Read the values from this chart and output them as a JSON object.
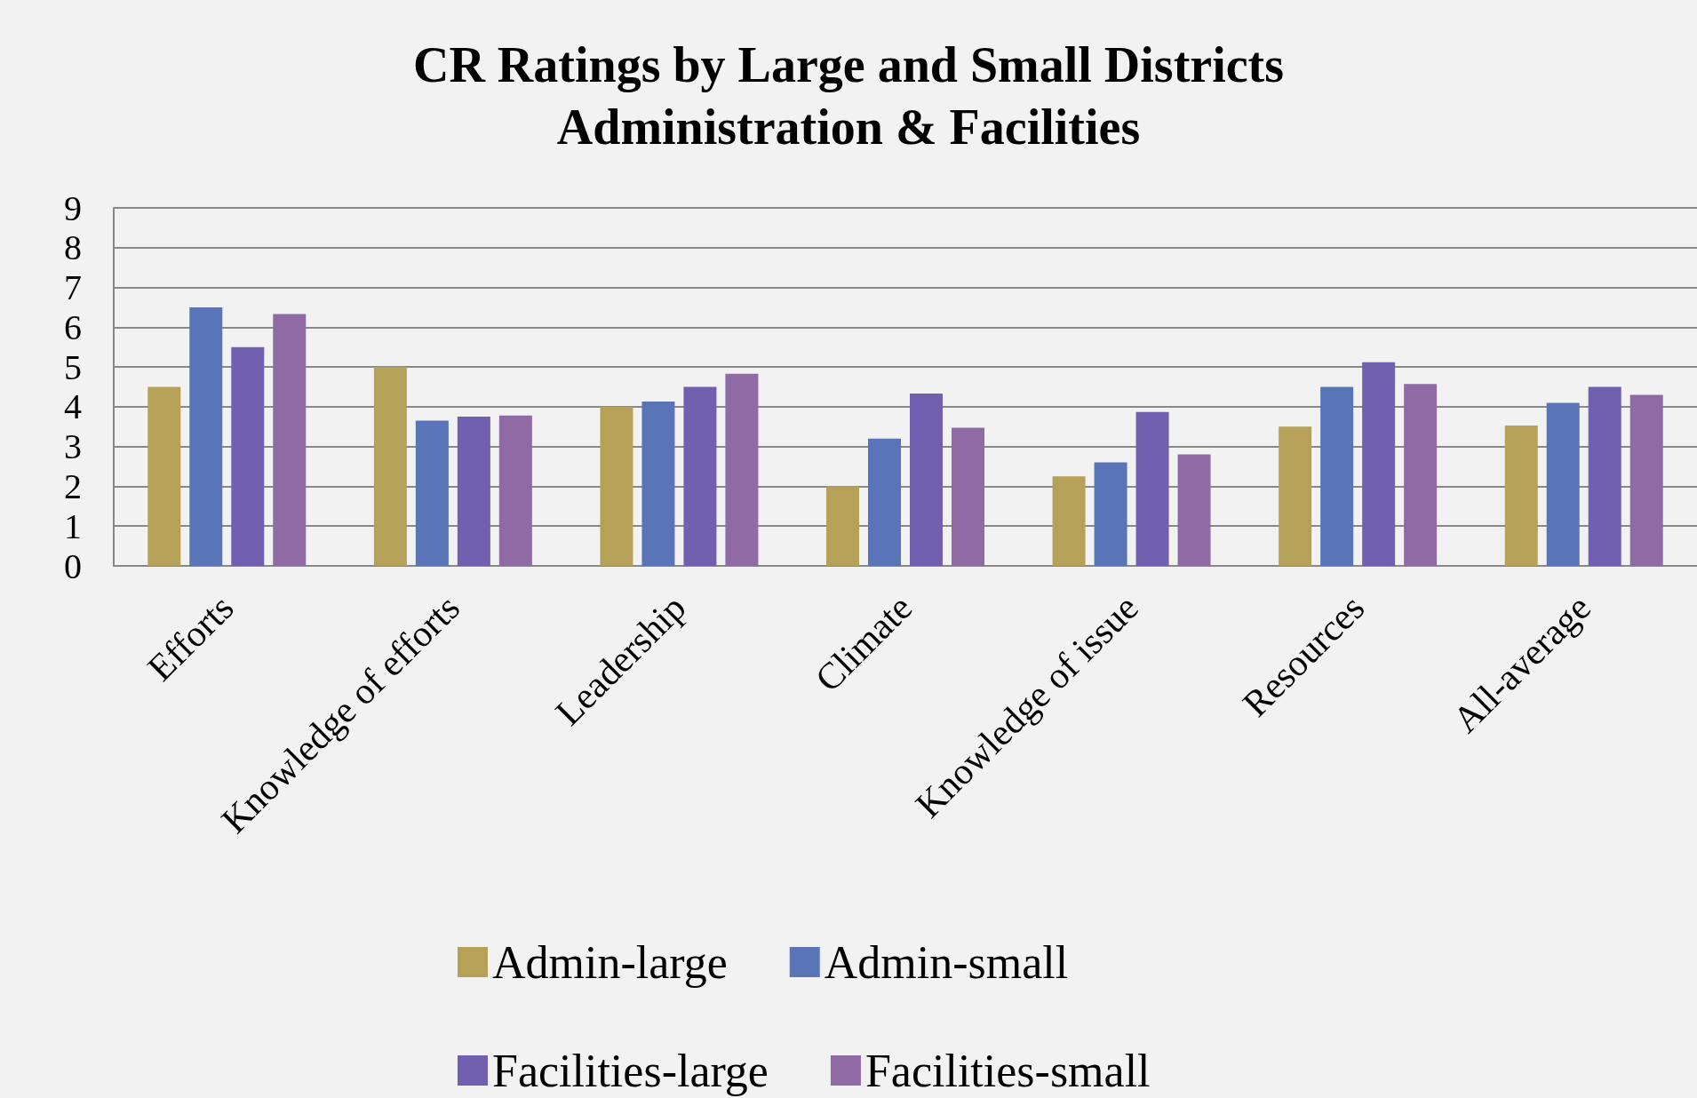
{
  "chart_data": {
    "type": "bar",
    "title": "CR Ratings by Large and Small Districts",
    "subtitle": "Administration & Facilities",
    "categories": [
      "Efforts",
      "Knowledge of efforts",
      "Leadership",
      "Climate",
      "Knowledge of issue",
      "Resources",
      "All-average"
    ],
    "series": [
      {
        "name": "Admin-large",
        "color": "#b5a157",
        "values": [
          4.5,
          5.0,
          4.0,
          2.0,
          2.25,
          3.5,
          3.53
        ]
      },
      {
        "name": "Admin-small",
        "color": "#5975b8",
        "values": [
          6.5,
          3.65,
          4.13,
          3.2,
          2.6,
          4.5,
          4.1
        ]
      },
      {
        "name": "Facilities-large",
        "color": "#715fb0",
        "values": [
          5.5,
          3.75,
          4.5,
          4.33,
          3.87,
          5.12,
          4.5
        ]
      },
      {
        "name": "Facilities-small",
        "color": "#8f6aa4",
        "values": [
          6.33,
          3.78,
          4.83,
          3.47,
          2.8,
          4.57,
          4.3
        ]
      }
    ],
    "ylim": [
      0,
      9
    ],
    "yticks": [
      0,
      1,
      2,
      3,
      4,
      5,
      6,
      7,
      8,
      9
    ],
    "grid": "y",
    "legend": "bottom"
  }
}
